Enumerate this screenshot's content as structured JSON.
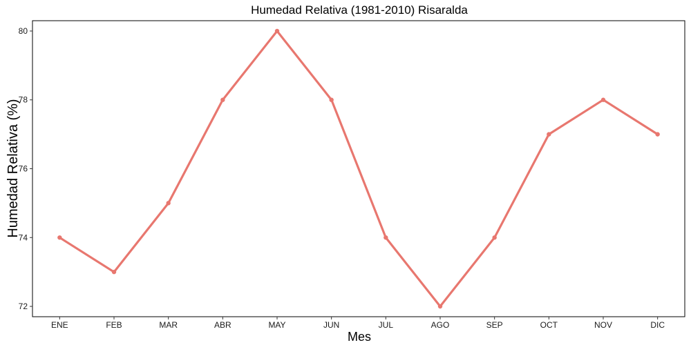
{
  "chart_data": {
    "type": "line",
    "title": "Humedad Relativa (1981-2010)  Risaralda",
    "xlabel": "Mes",
    "ylabel": "Humedad Relativa  (%)",
    "categories": [
      "ENE",
      "FEB",
      "MAR",
      "ABR",
      "MAY",
      "JUN",
      "JUL",
      "AGO",
      "SEP",
      "OCT",
      "NOV",
      "DIC"
    ],
    "series": [
      {
        "values": [
          74,
          73,
          75,
          78,
          80,
          78,
          74,
          72,
          74,
          77,
          78,
          77
        ],
        "color": "#e8776f"
      }
    ],
    "y_ticks": [
      72,
      74,
      76,
      78,
      80
    ],
    "ylim": [
      71.7,
      80.3
    ],
    "grid": false,
    "legend": "none"
  }
}
